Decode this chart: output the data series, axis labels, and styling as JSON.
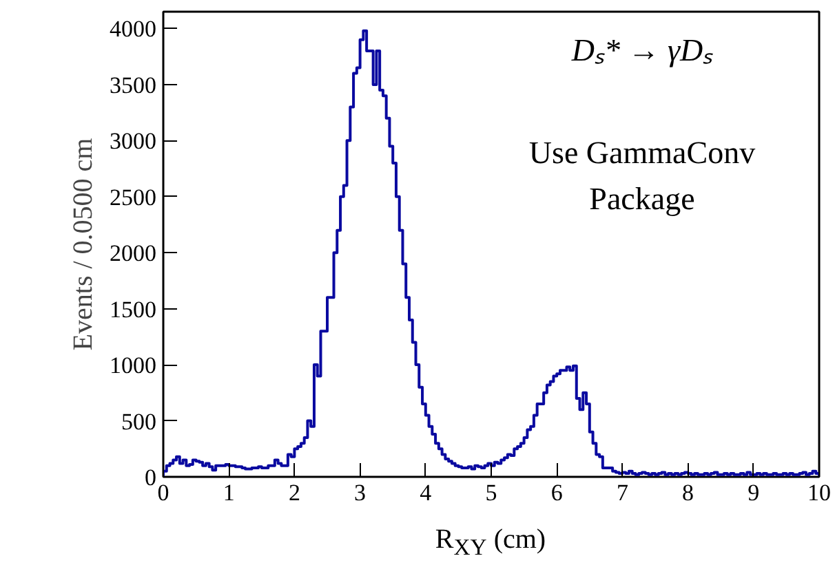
{
  "chart_data": {
    "type": "histogram",
    "xlabel": "R$_{XY}$ (cm)",
    "ylabel": "Events / 0.0500 cm",
    "annotations": [
      "Dₛ* → γDₛ",
      "Use GammaConv",
      "Package"
    ],
    "color": "#0a0aa0",
    "xlim": [
      0,
      10
    ],
    "ylim": [
      0,
      4150
    ],
    "xticks": [
      0,
      1,
      2,
      3,
      4,
      5,
      6,
      7,
      8,
      9,
      10
    ],
    "yticks": [
      0,
      500,
      1000,
      1500,
      2000,
      2500,
      3000,
      3500,
      4000
    ],
    "grid": false,
    "bins": [
      0,
      0.05,
      0.1,
      0.15,
      0.2,
      0.25,
      0.3,
      0.35,
      0.4,
      0.45,
      0.5,
      0.55,
      0.6,
      0.65,
      0.7,
      0.75,
      0.8,
      0.85,
      0.9,
      0.95,
      1,
      1.05,
      1.1,
      1.15,
      1.2,
      1.25,
      1.3,
      1.35,
      1.4,
      1.45,
      1.5,
      1.55,
      1.6,
      1.65,
      1.7,
      1.75,
      1.8,
      1.85,
      1.9,
      1.95,
      2,
      2.05,
      2.1,
      2.15,
      2.2,
      2.25,
      2.3,
      2.35,
      2.4,
      2.45,
      2.5,
      2.55,
      2.6,
      2.65,
      2.7,
      2.75,
      2.8,
      2.85,
      2.9,
      2.95,
      3,
      3.05,
      3.1,
      3.15,
      3.2,
      3.25,
      3.3,
      3.35,
      3.4,
      3.45,
      3.5,
      3.55,
      3.6,
      3.65,
      3.7,
      3.75,
      3.8,
      3.85,
      3.9,
      3.95,
      4,
      4.05,
      4.1,
      4.15,
      4.2,
      4.25,
      4.3,
      4.35,
      4.4,
      4.45,
      4.5,
      4.55,
      4.6,
      4.65,
      4.7,
      4.75,
      4.8,
      4.85,
      4.9,
      4.95,
      5,
      5.05,
      5.1,
      5.15,
      5.2,
      5.25,
      5.3,
      5.35,
      5.4,
      5.45,
      5.5,
      5.55,
      5.6,
      5.65,
      5.7,
      5.75,
      5.8,
      5.85,
      5.9,
      5.95,
      6,
      6.05,
      6.1,
      6.15,
      6.2,
      6.25,
      6.3,
      6.35,
      6.4,
      6.45,
      6.5,
      6.55,
      6.6,
      6.65,
      6.7,
      6.75,
      6.8,
      6.85,
      6.9,
      6.95,
      7,
      7.05,
      7.1,
      7.15,
      7.2,
      7.25,
      7.3,
      7.35,
      7.4,
      7.45,
      7.5,
      7.55,
      7.6,
      7.65,
      7.7,
      7.75,
      7.8,
      7.85,
      7.9,
      7.95,
      8,
      8.05,
      8.1,
      8.15,
      8.2,
      8.25,
      8.3,
      8.35,
      8.4,
      8.45,
      8.5,
      8.55,
      8.6,
      8.65,
      8.7,
      8.75,
      8.8,
      8.85,
      8.9,
      8.95,
      9,
      9.05,
      9.1,
      9.15,
      9.2,
      9.25,
      9.3,
      9.35,
      9.4,
      9.45,
      9.5,
      9.55,
      9.6,
      9.65,
      9.7,
      9.75,
      9.8,
      9.85,
      9.9,
      9.95,
      10
    ],
    "values": [
      50,
      100,
      120,
      150,
      180,
      120,
      150,
      100,
      110,
      150,
      140,
      130,
      100,
      120,
      90,
      60,
      100,
      100,
      100,
      110,
      100,
      100,
      90,
      90,
      80,
      70,
      70,
      80,
      80,
      90,
      80,
      80,
      100,
      100,
      150,
      120,
      100,
      100,
      200,
      180,
      250,
      270,
      300,
      350,
      500,
      450,
      1000,
      900,
      1300,
      1300,
      1600,
      1600,
      2000,
      2200,
      2500,
      2600,
      3000,
      3300,
      3600,
      3650,
      3900,
      3980,
      3800,
      3800,
      3500,
      3800,
      3450,
      3400,
      3200,
      2950,
      2800,
      2500,
      2200,
      1900,
      1600,
      1400,
      1200,
      1000,
      800,
      650,
      550,
      450,
      380,
      300,
      250,
      200,
      160,
      140,
      120,
      100,
      90,
      80,
      80,
      90,
      70,
      100,
      90,
      80,
      100,
      120,
      100,
      130,
      120,
      150,
      170,
      200,
      190,
      250,
      270,
      300,
      350,
      420,
      450,
      550,
      650,
      650,
      750,
      820,
      850,
      900,
      920,
      950,
      950,
      980,
      950,
      990,
      700,
      600,
      750,
      650,
      400,
      300,
      200,
      180,
      80,
      80,
      80,
      50,
      40,
      30,
      40,
      30,
      50,
      30,
      20,
      30,
      40,
      30,
      20,
      30,
      20,
      30,
      40,
      20,
      30,
      20,
      30,
      20,
      30,
      40,
      30,
      20,
      30,
      20,
      20,
      30,
      20,
      30,
      40,
      20,
      20,
      30,
      20,
      30,
      20,
      20,
      30,
      20,
      40,
      20,
      20,
      30,
      20,
      30,
      20,
      20,
      30,
      20,
      20,
      30,
      20,
      30,
      20,
      20,
      30,
      40,
      20,
      30,
      50,
      30
    ]
  }
}
